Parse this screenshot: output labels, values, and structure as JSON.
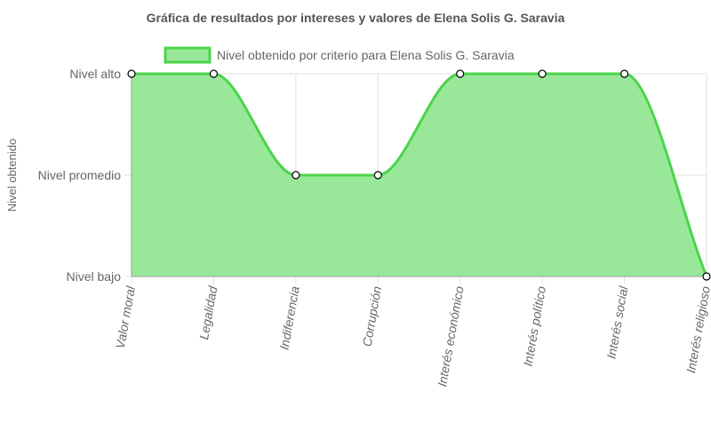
{
  "chart_data": {
    "type": "line",
    "title": "Gráfica de resultados por intereses y valores de Elena Solis G. Saravia",
    "ylabel": "Nivel obtenido",
    "xlabel": "",
    "categories": [
      "Valor moral",
      "Legalidad",
      "Indiferencia",
      "Corrupción",
      "Interés económico",
      "Interés político",
      "Interés social",
      "Interés religioso"
    ],
    "y_categories": [
      "Nivel bajo",
      "Nivel promedio",
      "Nivel alto"
    ],
    "ylim": [
      0,
      2
    ],
    "series": [
      {
        "name": "Nivel obtenido por criterio para Elena Solis G. Saravia",
        "values": [
          2,
          2,
          1,
          1,
          2,
          2,
          2,
          0
        ],
        "fill": true
      }
    ],
    "legend": "top",
    "grid": true,
    "colors": {
      "line": "#4cd44c",
      "fill": "#99e899",
      "grid": "#e0e0e0",
      "axis": "#999999"
    }
  }
}
